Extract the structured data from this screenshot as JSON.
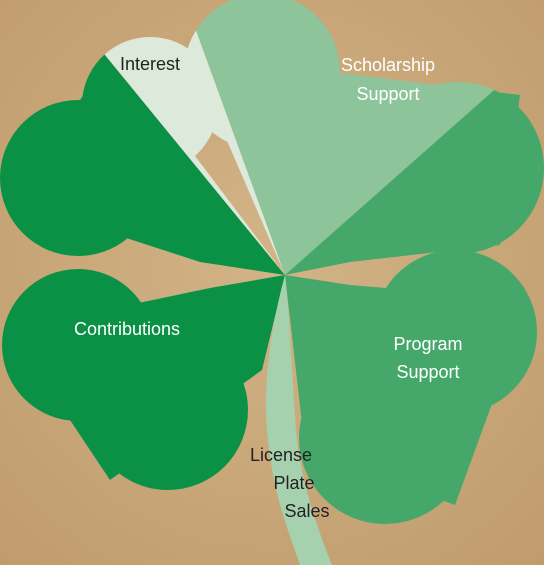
{
  "labels": {
    "interest": [
      "Interest"
    ],
    "scholarship": [
      "Scholarship",
      "Support"
    ],
    "contributions": [
      "Contributions"
    ],
    "program": [
      "Program",
      "Support"
    ],
    "license": [
      "License",
      "Plate",
      "Sales"
    ]
  }
}
